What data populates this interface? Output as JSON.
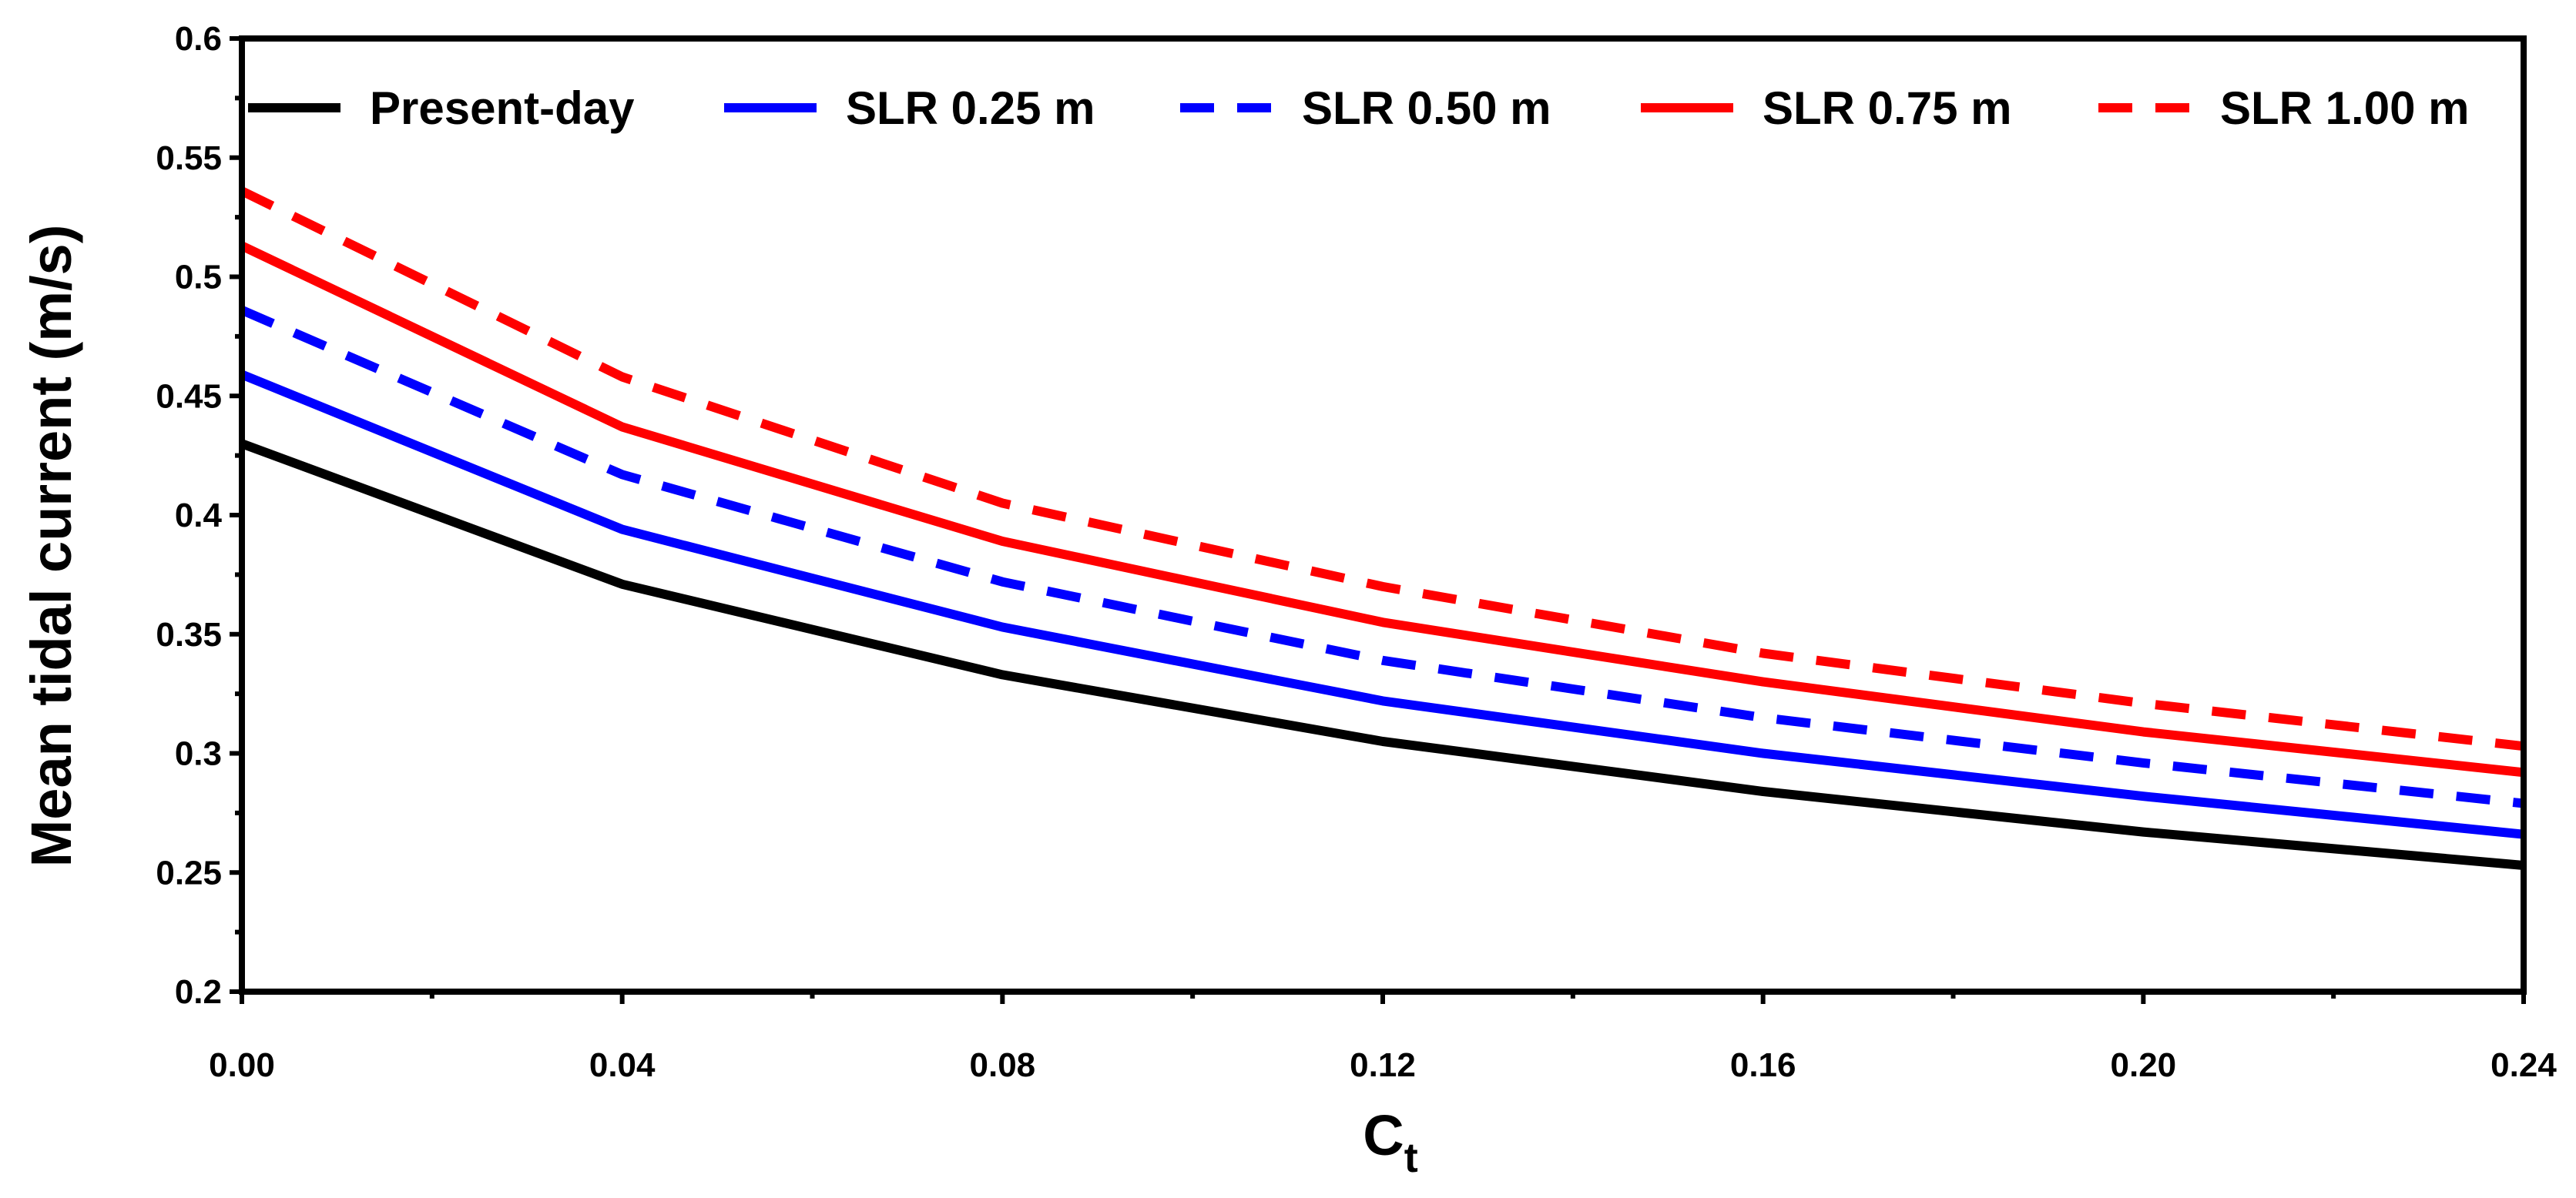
{
  "chart_data": {
    "type": "line",
    "title": "",
    "xlabel": "C",
    "xlabel_subscript": "t",
    "ylabel": "Mean tidal current (m/s)",
    "x": [
      0.0,
      0.04,
      0.08,
      0.12,
      0.16,
      0.2,
      0.24
    ],
    "x_tick_labels": [
      "0.00",
      "0.04",
      "0.08",
      "0.12",
      "0.16",
      "0.20",
      "0.24"
    ],
    "xlim": [
      0,
      0.24
    ],
    "ylim": [
      0.2,
      0.6
    ],
    "y_ticks": [
      0.2,
      0.25,
      0.3,
      0.35,
      0.4,
      0.45,
      0.5,
      0.55,
      0.6
    ],
    "y_tick_labels": [
      "0.2",
      "0.25",
      "0.3",
      "0.35",
      "0.4",
      "0.45",
      "0.5",
      "0.55",
      "0.6"
    ],
    "grid": false,
    "legend_position": "top",
    "series": [
      {
        "name": "Present-day",
        "color": "#000000",
        "dash": "solid",
        "values": [
          0.43,
          0.371,
          0.333,
          0.305,
          0.284,
          0.267,
          0.253
        ]
      },
      {
        "name": "SLR 0.25 m",
        "color": "#0000ff",
        "dash": "solid",
        "values": [
          0.459,
          0.394,
          0.353,
          0.322,
          0.3,
          0.282,
          0.266
        ]
      },
      {
        "name": "SLR 0.50 m",
        "color": "#0000ff",
        "dash": "dashed",
        "values": [
          0.486,
          0.417,
          0.372,
          0.339,
          0.315,
          0.296,
          0.279
        ]
      },
      {
        "name": "SLR 0.75 m",
        "color": "#ff0000",
        "dash": "solid",
        "values": [
          0.513,
          0.437,
          0.389,
          0.355,
          0.33,
          0.309,
          0.292
        ]
      },
      {
        "name": "SLR 1.00 m",
        "color": "#ff0000",
        "dash": "dashed",
        "values": [
          0.536,
          0.458,
          0.405,
          0.37,
          0.342,
          0.321,
          0.303
        ]
      }
    ]
  }
}
